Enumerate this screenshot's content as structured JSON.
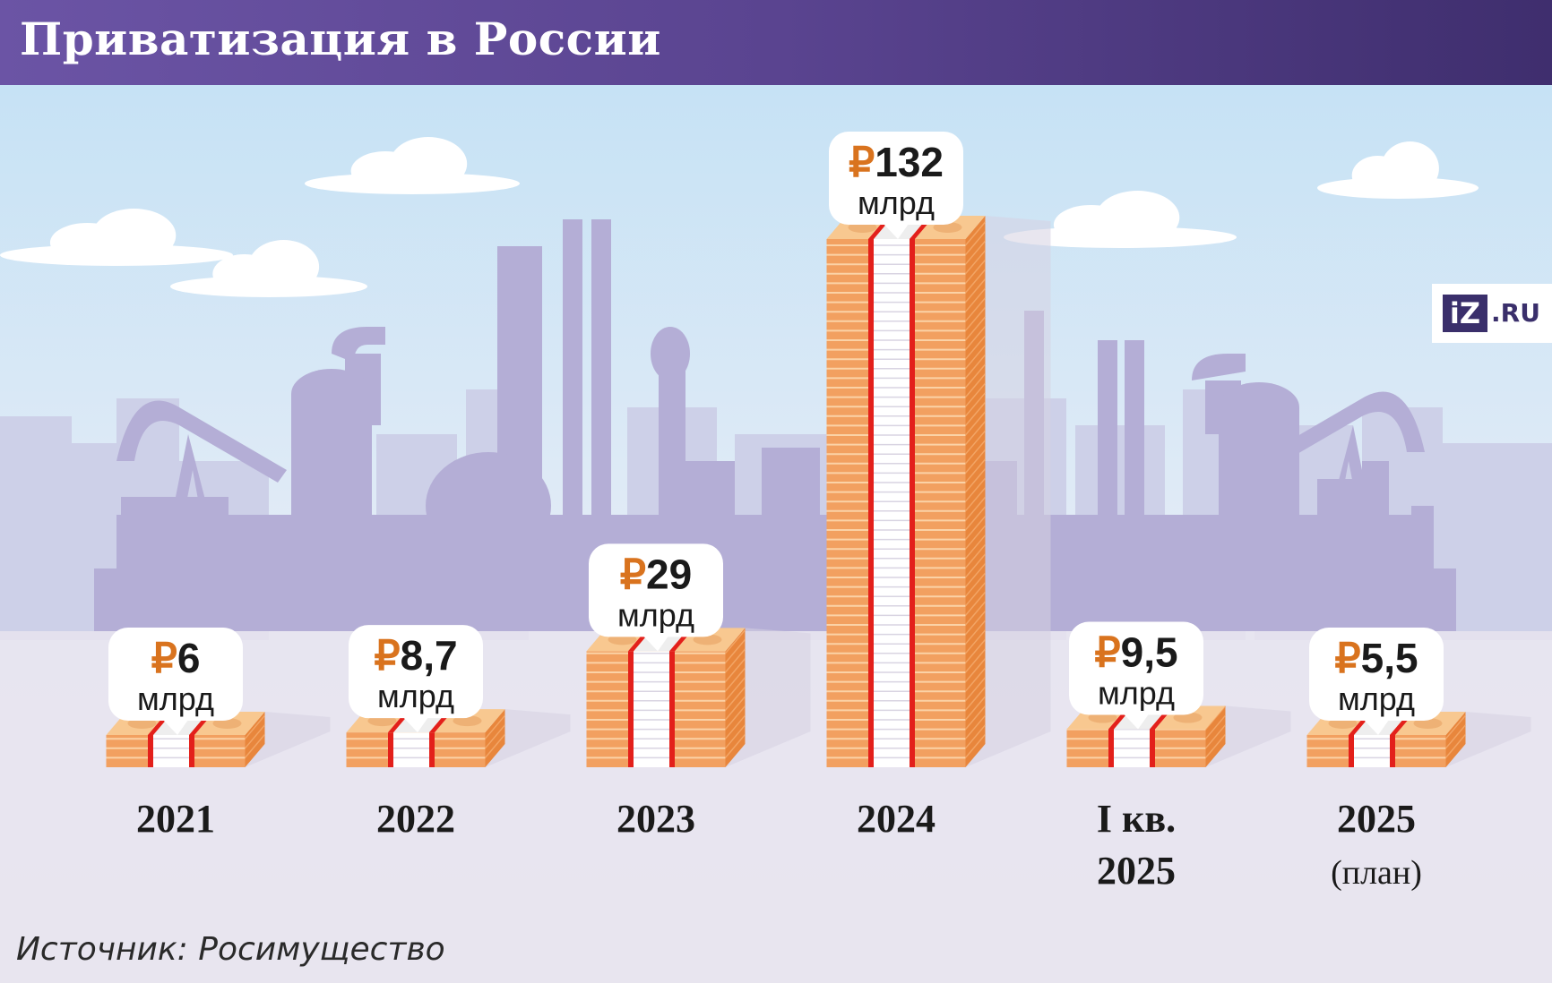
{
  "header": {
    "title": "Приватизация в России"
  },
  "logo": {
    "mark": "iZ",
    "domain": ".RU"
  },
  "source": "Источник: Росимущество",
  "colors": {
    "sky_top": "#c9e3f4",
    "skyline": "#b4aed6",
    "skyline_far": "#cdd0e8",
    "ground": "#e6e3ef",
    "note_orange": "#f2a060",
    "note_light": "#f8c890",
    "band_red": "#e3201b",
    "ruble_orange": "#d9731e",
    "label_dark": "#1a1a1a"
  },
  "chart_data": {
    "type": "bar",
    "title": "Приватизация в России",
    "categories": [
      "2021",
      "2022",
      "2023",
      "2024",
      "I кв. 2025",
      "2025 (план)"
    ],
    "category_lines": [
      [
        "2021"
      ],
      [
        "2022"
      ],
      [
        "2023"
      ],
      [
        "2024"
      ],
      [
        "I кв.",
        "2025"
      ],
      [
        "2025",
        "(план)"
      ]
    ],
    "values": [
      6,
      8.7,
      29,
      132,
      9.5,
      5.5
    ],
    "value_labels": [
      "6",
      "8,7",
      "29",
      "132",
      "9,5",
      "5,5"
    ],
    "currency_symbol": "₽",
    "unit": "млрд",
    "icon": "banknote-stack-icon",
    "background_icon": "industrial-skyline-icon"
  }
}
